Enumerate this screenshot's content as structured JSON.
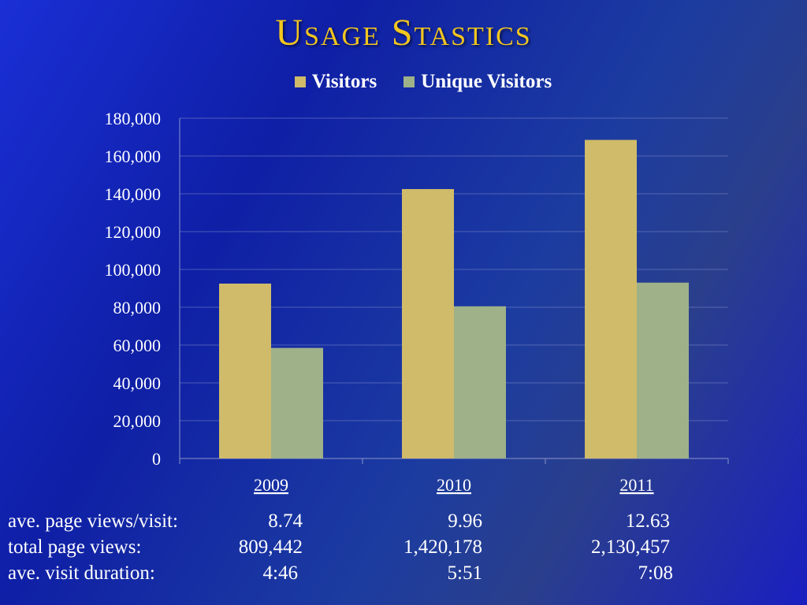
{
  "slide": {
    "title": "Usage Stastics"
  },
  "colors": {
    "visitors": "#cfbb6a",
    "unique_visitors": "#9fb188",
    "title": "#f2c61f"
  },
  "chart_data": {
    "type": "bar",
    "categories": [
      "2009",
      "2010",
      "2011"
    ],
    "series": [
      {
        "name": "Visitors",
        "values": [
          92500,
          142500,
          168500
        ]
      },
      {
        "name": "Unique Visitors",
        "values": [
          58500,
          80500,
          93000
        ]
      }
    ],
    "yticks": [
      "0",
      "20,000",
      "40,000",
      "60,000",
      "80,000",
      "100,000",
      "120,000",
      "140,000",
      "160,000",
      "180,000"
    ],
    "ylim": [
      0,
      180000
    ],
    "grid": true,
    "legend": "top"
  },
  "stats": {
    "rows": [
      {
        "label": "ave. page views/visit:",
        "values": [
          "8.74",
          "9.96",
          "12.63"
        ]
      },
      {
        "label": "total page views:",
        "values": [
          "809,442",
          "1,420,178",
          "2,130,457"
        ]
      },
      {
        "label": "ave. visit duration:",
        "values": [
          "4:46",
          "5:51",
          "7:08"
        ]
      }
    ]
  }
}
